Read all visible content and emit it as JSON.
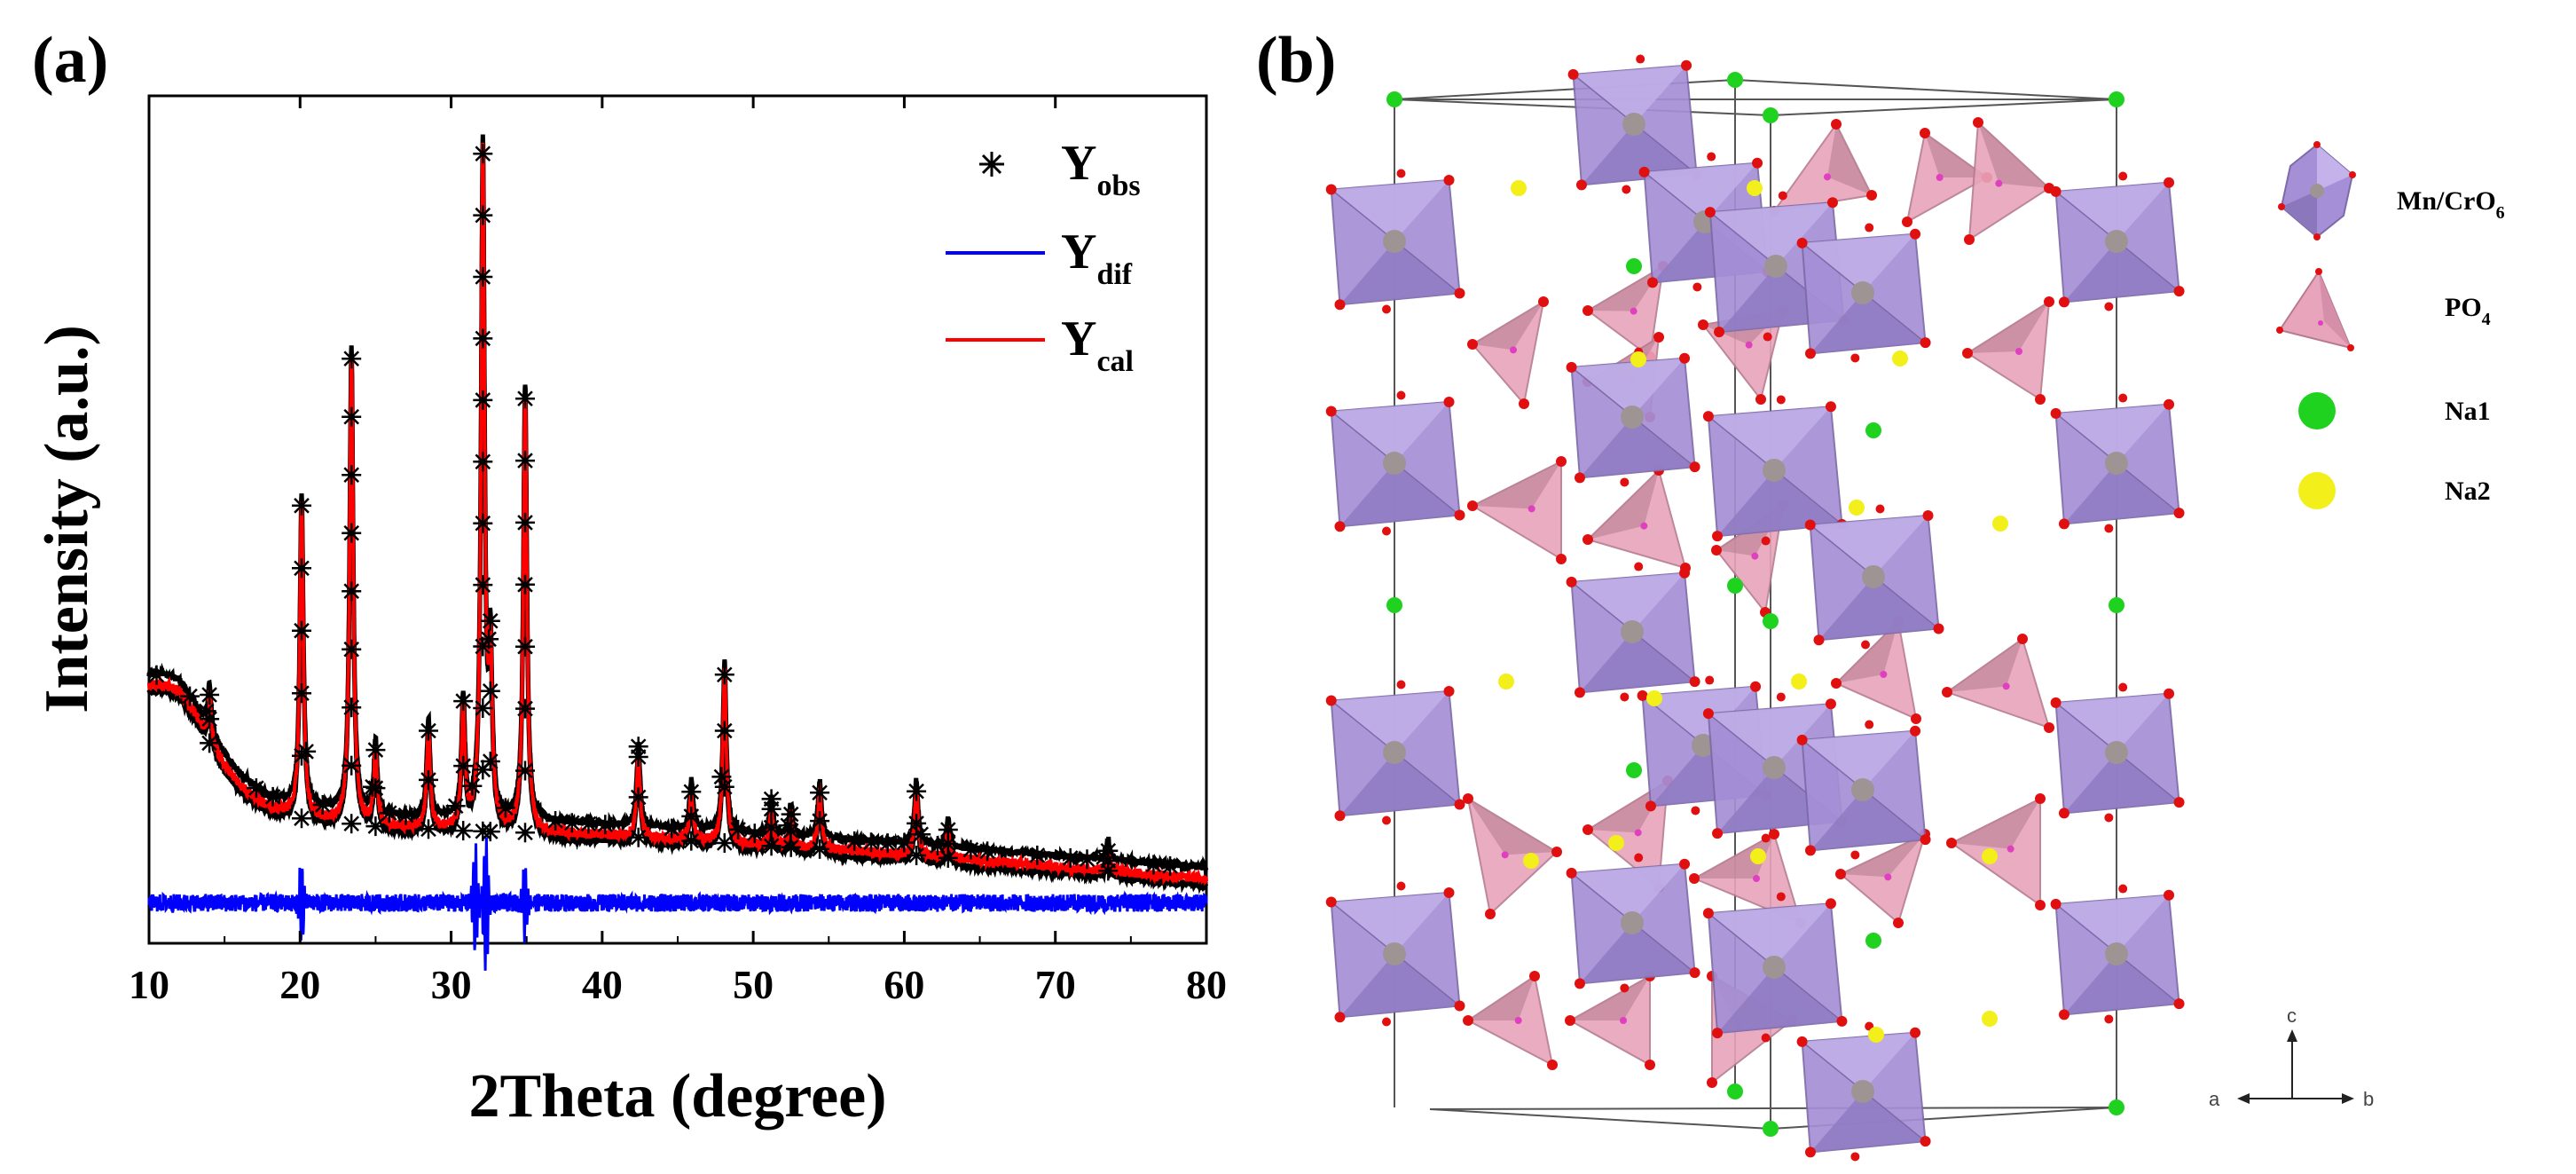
{
  "panels": {
    "a": {
      "label": "(a)"
    },
    "b": {
      "label": "(b)"
    }
  },
  "chart_data": {
    "type": "line",
    "title": "",
    "xlabel": "2Theta (degree)",
    "ylabel": "Intensity (a.u.)",
    "xlim": [
      10,
      80
    ],
    "ylim": [
      -0.5,
      10
    ],
    "xticks": [
      10,
      20,
      30,
      40,
      50,
      60,
      70,
      80
    ],
    "grid": false,
    "legend_position": "top-right",
    "legend": [
      {
        "main": "Y",
        "sub": "obs",
        "style": "star-marker",
        "color": "#000000"
      },
      {
        "main": "Y",
        "sub": "dif",
        "style": "line",
        "color": "#0000ff"
      },
      {
        "main": "Y",
        "sub": "cal",
        "style": "line",
        "color": "#ff0000"
      }
    ],
    "background": {
      "points": [
        [
          10,
          2.7
        ],
        [
          11,
          2.7
        ],
        [
          12,
          2.62
        ],
        [
          13,
          2.35
        ],
        [
          14,
          1.98
        ],
        [
          15,
          1.7
        ],
        [
          16,
          1.46
        ],
        [
          17,
          1.3
        ],
        [
          18,
          1.18
        ],
        [
          20,
          1.05
        ],
        [
          25,
          0.95
        ],
        [
          30,
          0.9
        ],
        [
          40,
          0.84
        ],
        [
          50,
          0.72
        ],
        [
          60,
          0.6
        ],
        [
          70,
          0.45
        ],
        [
          80,
          0.3
        ]
      ]
    },
    "peaks": [
      {
        "position": 14.0,
        "height": 0.6
      },
      {
        "position": 20.1,
        "height": 3.9
      },
      {
        "position": 23.4,
        "height": 5.8
      },
      {
        "position": 25.0,
        "height": 0.9
      },
      {
        "position": 28.5,
        "height": 1.2
      },
      {
        "position": 30.8,
        "height": 1.5
      },
      {
        "position": 32.1,
        "height": 8.3
      },
      {
        "position": 32.6,
        "height": 2.0
      },
      {
        "position": 34.9,
        "height": 5.4
      },
      {
        "position": 42.4,
        "height": 1.0
      },
      {
        "position": 45.9,
        "height": 0.6
      },
      {
        "position": 48.1,
        "height": 2.1
      },
      {
        "position": 51.2,
        "height": 0.45
      },
      {
        "position": 52.5,
        "height": 0.4
      },
      {
        "position": 54.4,
        "height": 0.7
      },
      {
        "position": 60.8,
        "height": 0.8
      },
      {
        "position": 62.9,
        "height": 0.35
      },
      {
        "position": 73.5,
        "height": 0.25
      }
    ],
    "difference_offset": 0,
    "difference_spikes": [
      {
        "position": 20.1,
        "amplitude": 0.55
      },
      {
        "position": 31.6,
        "amplitude": 0.7
      },
      {
        "position": 32.3,
        "amplitude": 0.8
      },
      {
        "position": 34.9,
        "amplitude": 0.45
      }
    ]
  },
  "structure": {
    "axis_labels": {
      "a": "a",
      "b": "b",
      "c": "c"
    },
    "legend": [
      {
        "name": "Mn/CrO",
        "subscript": "6",
        "icon": "octahedron-icon",
        "color": "#a58fd6"
      },
      {
        "name": "PO",
        "subscript": "4",
        "icon": "tetrahedron-icon",
        "color": "#e7a4bb"
      },
      {
        "name": "Na1",
        "subscript": "",
        "icon": "green-sphere-icon",
        "color": "#1fd21f"
      },
      {
        "name": "Na2",
        "subscript": "",
        "icon": "yellow-sphere-icon",
        "color": "#f2ef1a"
      }
    ],
    "colors": {
      "octahedron": "#a58fd6",
      "octahedron_dark": "#7d6aa8",
      "tetrahedron": "#e7a4bb",
      "tetrahedron_dark": "#b67b8f",
      "oxygen": "#e01010",
      "metal": "#9e9494",
      "phosphorus": "#e040c0",
      "na1": "#1fd21f",
      "na2": "#f2ef1a"
    }
  }
}
